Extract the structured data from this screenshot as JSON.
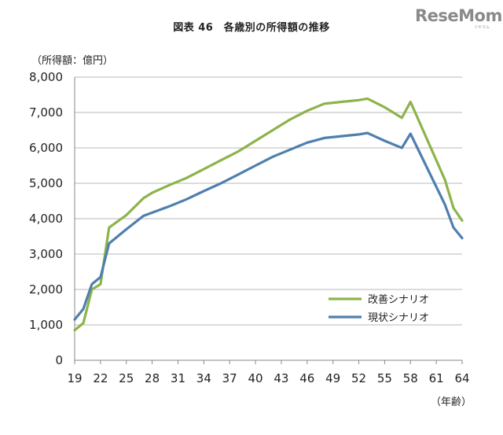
{
  "header": {
    "title": "図表 46　各歳別の所得額の推移",
    "logo": "ReseMom",
    "logo_sub": "リセマム"
  },
  "chart_data": {
    "type": "line",
    "title": "図表 46　各歳別の所得額の推移",
    "ylabel": "（所得額：億円）",
    "xlabel": "（年齢）",
    "ylim": [
      0,
      8000
    ],
    "xlim": [
      19,
      64
    ],
    "grid": true,
    "legend_position": "right-middle",
    "y_ticks": [
      "0",
      "1,000",
      "2,000",
      "3,000",
      "4,000",
      "5,000",
      "6,000",
      "7,000",
      "8,000"
    ],
    "x_ticks": [
      "19",
      "22",
      "25",
      "28",
      "31",
      "34",
      "37",
      "40",
      "43",
      "46",
      "49",
      "52",
      "55",
      "58",
      "61",
      "64"
    ],
    "series": [
      {
        "name": "改善シナリオ",
        "color": "#8db34a",
        "points": [
          [
            19,
            850
          ],
          [
            20,
            1050
          ],
          [
            21,
            2000
          ],
          [
            22,
            2150
          ],
          [
            23,
            3750
          ],
          [
            25,
            4100
          ],
          [
            27,
            4580
          ],
          [
            28,
            4730
          ],
          [
            30,
            4950
          ],
          [
            32,
            5150
          ],
          [
            34,
            5400
          ],
          [
            36,
            5650
          ],
          [
            38,
            5900
          ],
          [
            40,
            6200
          ],
          [
            42,
            6500
          ],
          [
            44,
            6800
          ],
          [
            46,
            7050
          ],
          [
            48,
            7250
          ],
          [
            50,
            7300
          ],
          [
            52,
            7350
          ],
          [
            53,
            7390
          ],
          [
            55,
            7150
          ],
          [
            57,
            6850
          ],
          [
            58,
            7300
          ],
          [
            60,
            6200
          ],
          [
            62,
            5100
          ],
          [
            63,
            4300
          ],
          [
            64,
            3950
          ]
        ]
      },
      {
        "name": "現状シナリオ",
        "color": "#4f7fae",
        "points": [
          [
            19,
            1150
          ],
          [
            20,
            1450
          ],
          [
            21,
            2150
          ],
          [
            22,
            2350
          ],
          [
            23,
            3300
          ],
          [
            25,
            3700
          ],
          [
            27,
            4080
          ],
          [
            30,
            4350
          ],
          [
            32,
            4550
          ],
          [
            34,
            4780
          ],
          [
            36,
            5000
          ],
          [
            38,
            5250
          ],
          [
            40,
            5500
          ],
          [
            42,
            5750
          ],
          [
            44,
            5950
          ],
          [
            46,
            6150
          ],
          [
            48,
            6280
          ],
          [
            50,
            6330
          ],
          [
            52,
            6380
          ],
          [
            53,
            6420
          ],
          [
            55,
            6200
          ],
          [
            57,
            6000
          ],
          [
            58,
            6400
          ],
          [
            60,
            5400
          ],
          [
            62,
            4400
          ],
          [
            63,
            3750
          ],
          [
            64,
            3450
          ]
        ]
      }
    ]
  }
}
